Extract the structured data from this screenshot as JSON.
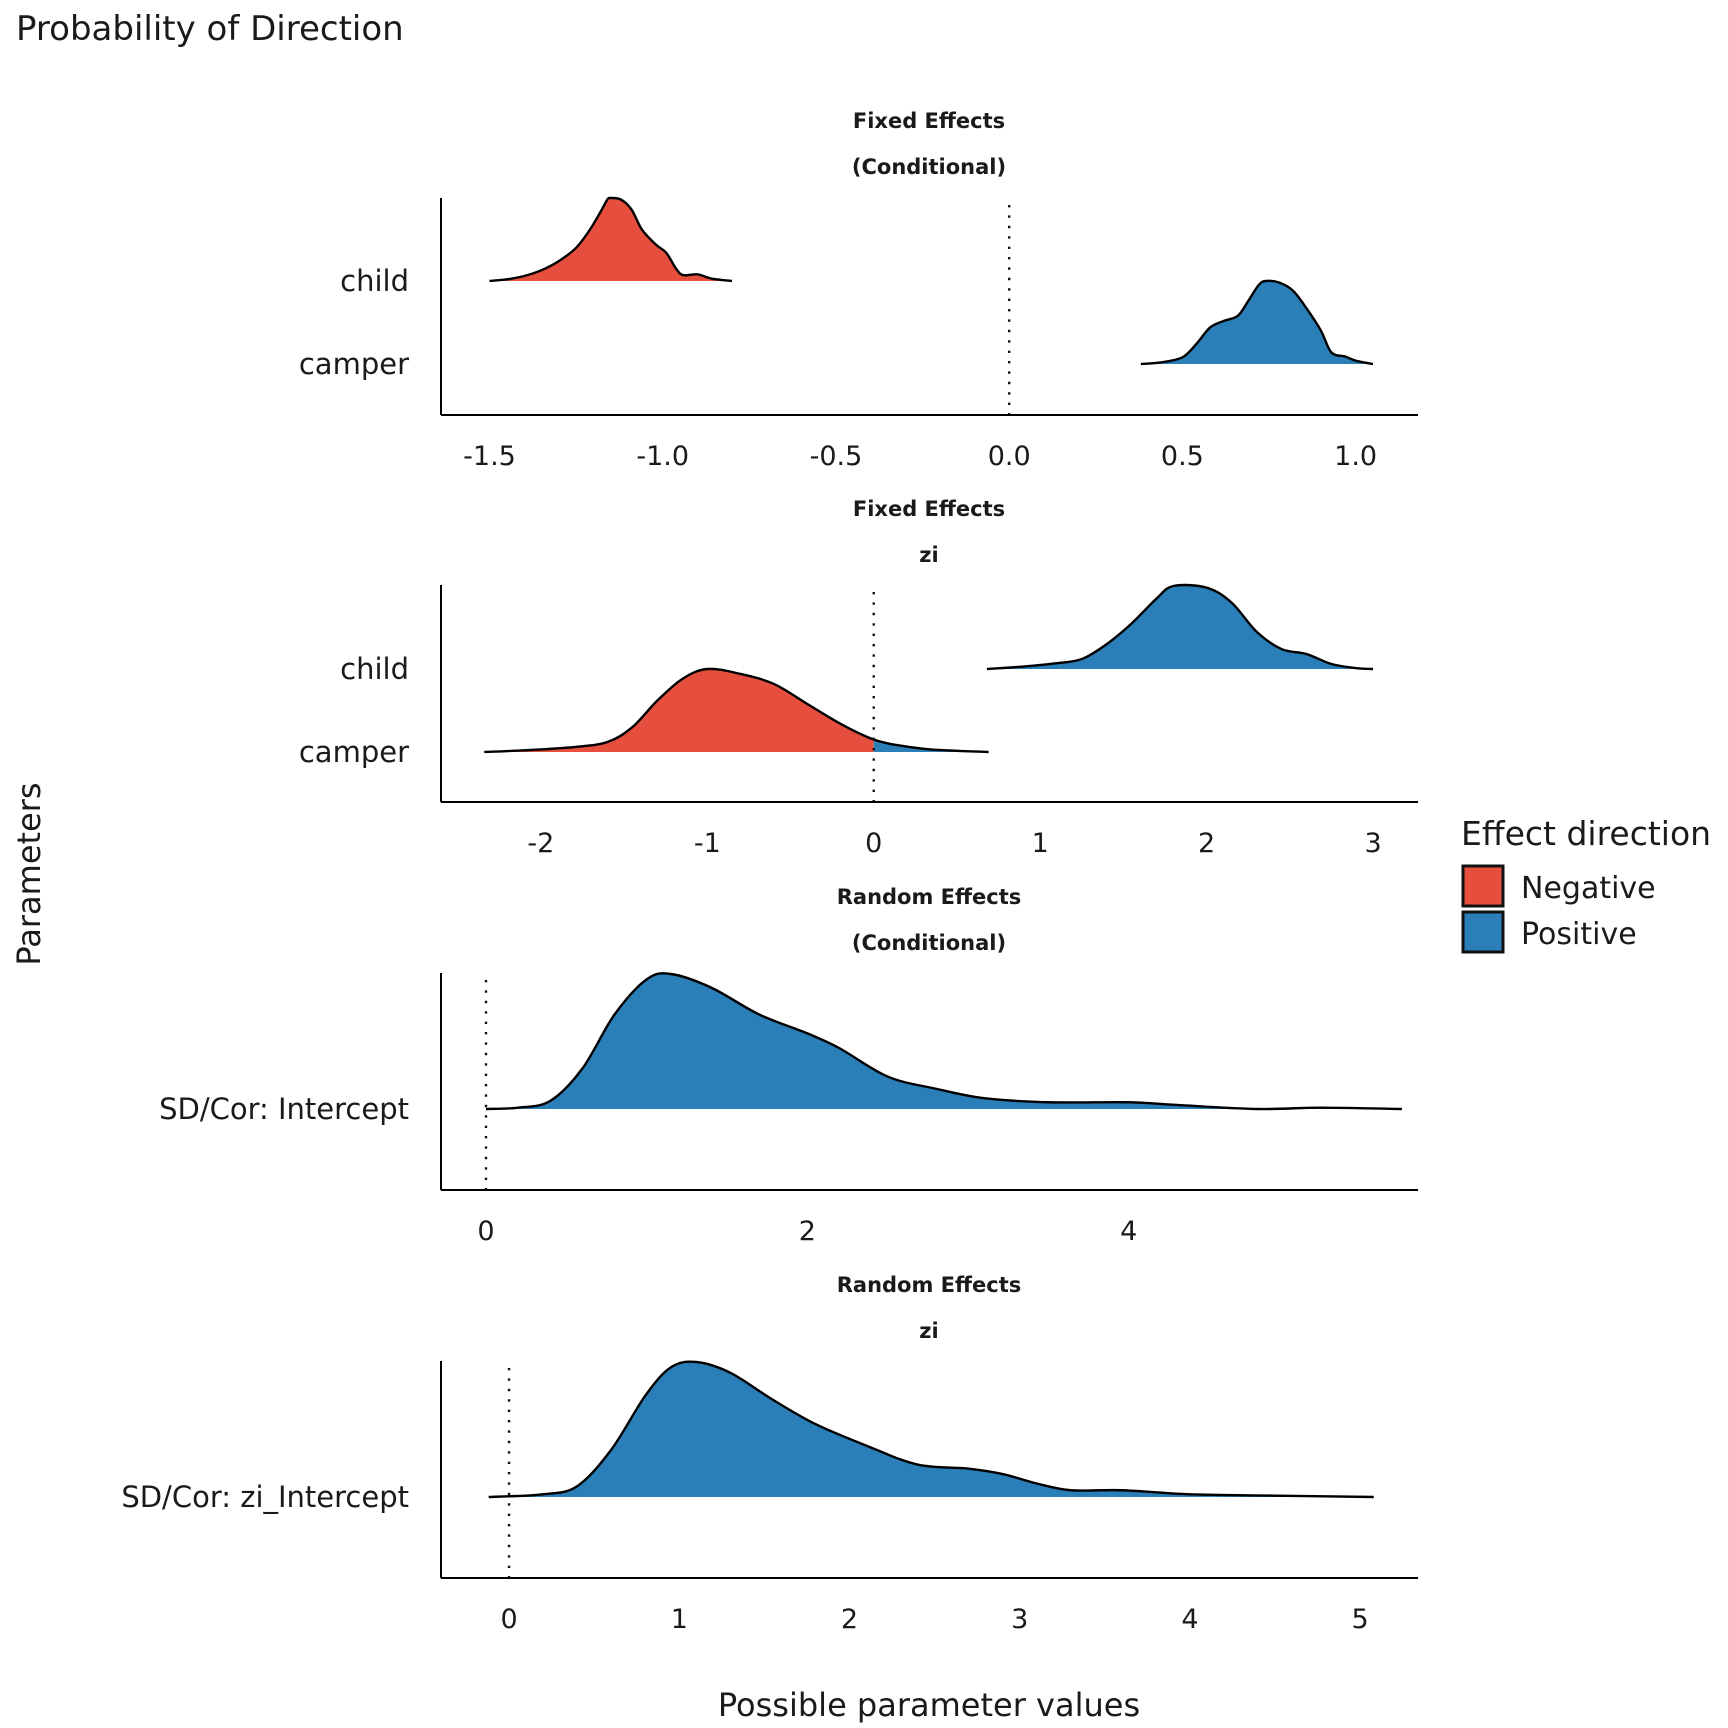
{
  "chart_data": {
    "type": "area",
    "subtype": "ridgeline-density",
    "title": "Probability of Direction",
    "xlabel": "Possible parameter values",
    "ylabel": "Parameters",
    "legend": {
      "title": "Effect direction",
      "placement": "right",
      "entries": [
        {
          "label": "Negative",
          "color": "#E64E3D"
        },
        {
          "label": "Positive",
          "color": "#2B7FB8"
        }
      ]
    },
    "zero_line": {
      "x": 0,
      "style": "dotted"
    },
    "panels": [
      {
        "strip": [
          "Fixed Effects",
          "(Conditional)"
        ],
        "xlim": [
          -1.64,
          1.18
        ],
        "ticks": [
          -1.5,
          -1.0,
          -0.5,
          0.0,
          0.5,
          1.0
        ],
        "tick_labels": [
          "-1.5",
          "-1.0",
          "-0.5",
          "0.0",
          "0.5",
          "1.0"
        ],
        "rows": [
          "child",
          "camper"
        ],
        "densities": [
          {
            "row": "child",
            "direction": "Negative",
            "points": [
              [
                -1.5,
                0.0
              ],
              [
                -1.45,
                0.02
              ],
              [
                -1.4,
                0.06
              ],
              [
                -1.35,
                0.13
              ],
              [
                -1.3,
                0.24
              ],
              [
                -1.25,
                0.4
              ],
              [
                -1.21,
                0.62
              ],
              [
                -1.18,
                0.83
              ],
              [
                -1.16,
                0.98
              ],
              [
                -1.15,
                1.0
              ],
              [
                -1.12,
                0.98
              ],
              [
                -1.09,
                0.86
              ],
              [
                -1.06,
                0.62
              ],
              [
                -1.02,
                0.44
              ],
              [
                -0.99,
                0.34
              ],
              [
                -0.96,
                0.14
              ],
              [
                -0.94,
                0.07
              ],
              [
                -0.9,
                0.08
              ],
              [
                -0.86,
                0.03
              ],
              [
                -0.8,
                0.0
              ]
            ]
          },
          {
            "row": "camper",
            "direction": "Positive",
            "points": [
              [
                0.38,
                0.0
              ],
              [
                0.44,
                0.02
              ],
              [
                0.5,
                0.08
              ],
              [
                0.54,
                0.24
              ],
              [
                0.58,
                0.44
              ],
              [
                0.62,
                0.52
              ],
              [
                0.66,
                0.58
              ],
              [
                0.69,
                0.76
              ],
              [
                0.72,
                0.95
              ],
              [
                0.74,
                1.0
              ],
              [
                0.78,
                0.98
              ],
              [
                0.82,
                0.88
              ],
              [
                0.86,
                0.66
              ],
              [
                0.9,
                0.4
              ],
              [
                0.93,
                0.14
              ],
              [
                0.97,
                0.09
              ],
              [
                1.0,
                0.04
              ],
              [
                1.05,
                0.0
              ]
            ]
          }
        ]
      },
      {
        "strip": [
          "Fixed Effects",
          "zi"
        ],
        "xlim": [
          -2.6,
          3.27
        ],
        "ticks": [
          -2,
          -1,
          0,
          1,
          2,
          3
        ],
        "tick_labels": [
          "-2",
          "-1",
          "0",
          "1",
          "2",
          "3"
        ],
        "rows": [
          "child",
          "camper"
        ],
        "densities": [
          {
            "row": "child",
            "direction": "Positive",
            "points": [
              [
                0.68,
                0.0
              ],
              [
                0.9,
                0.03
              ],
              [
                1.1,
                0.07
              ],
              [
                1.25,
                0.12
              ],
              [
                1.4,
                0.3
              ],
              [
                1.55,
                0.55
              ],
              [
                1.7,
                0.85
              ],
              [
                1.8,
                1.0
              ],
              [
                2.0,
                0.98
              ],
              [
                2.15,
                0.8
              ],
              [
                2.3,
                0.45
              ],
              [
                2.45,
                0.24
              ],
              [
                2.6,
                0.18
              ],
              [
                2.75,
                0.06
              ],
              [
                2.9,
                0.01
              ],
              [
                3.0,
                0.0
              ]
            ]
          },
          {
            "row": "camper",
            "direction": "Negative/Positive split at 0",
            "points": [
              [
                -2.34,
                0.0
              ],
              [
                -2.1,
                0.02
              ],
              [
                -1.8,
                0.06
              ],
              [
                -1.6,
                0.12
              ],
              [
                -1.45,
                0.3
              ],
              [
                -1.3,
                0.62
              ],
              [
                -1.15,
                0.88
              ],
              [
                -1.0,
                1.0
              ],
              [
                -0.8,
                0.94
              ],
              [
                -0.6,
                0.82
              ],
              [
                -0.4,
                0.58
              ],
              [
                -0.2,
                0.34
              ],
              [
                0.0,
                0.15
              ],
              [
                0.15,
                0.08
              ],
              [
                0.35,
                0.03
              ],
              [
                0.69,
                0.0
              ]
            ]
          }
        ]
      },
      {
        "strip": [
          "Random Effects",
          "(Conditional)"
        ],
        "xlim": [
          -0.28,
          5.8
        ],
        "ticks": [
          0,
          2,
          4
        ],
        "tick_labels": [
          "0",
          "2",
          "4"
        ],
        "rows": [
          "SD/Cor:  Intercept"
        ],
        "densities": [
          {
            "row": "SD/Cor:  Intercept",
            "direction": "Positive",
            "points": [
              [
                0.0,
                0.0
              ],
              [
                0.2,
                0.01
              ],
              [
                0.4,
                0.06
              ],
              [
                0.6,
                0.3
              ],
              [
                0.8,
                0.7
              ],
              [
                1.0,
                0.96
              ],
              [
                1.15,
                1.0
              ],
              [
                1.4,
                0.9
              ],
              [
                1.7,
                0.7
              ],
              [
                2.0,
                0.56
              ],
              [
                2.2,
                0.45
              ],
              [
                2.5,
                0.24
              ],
              [
                2.8,
                0.15
              ],
              [
                3.1,
                0.08
              ],
              [
                3.5,
                0.05
              ],
              [
                4.0,
                0.05
              ],
              [
                4.3,
                0.03
              ],
              [
                4.8,
                0.0
              ],
              [
                5.2,
                0.01
              ],
              [
                5.7,
                0.0
              ]
            ]
          }
        ]
      },
      {
        "strip": [
          "Random Effects",
          "zi"
        ],
        "xlim": [
          -0.4,
          5.34
        ],
        "ticks": [
          0,
          1,
          2,
          3,
          4,
          5
        ],
        "tick_labels": [
          "0",
          "1",
          "2",
          "3",
          "4",
          "5"
        ],
        "rows": [
          "SD/Cor:  zi_Intercept"
        ],
        "densities": [
          {
            "row": "SD/Cor:  zi_Intercept",
            "direction": "Positive",
            "points": [
              [
                -0.12,
                0.0
              ],
              [
                0.2,
                0.02
              ],
              [
                0.4,
                0.08
              ],
              [
                0.6,
                0.35
              ],
              [
                0.8,
                0.75
              ],
              [
                0.95,
                0.96
              ],
              [
                1.1,
                1.0
              ],
              [
                1.3,
                0.92
              ],
              [
                1.55,
                0.72
              ],
              [
                1.8,
                0.54
              ],
              [
                2.1,
                0.38
              ],
              [
                2.4,
                0.24
              ],
              [
                2.7,
                0.21
              ],
              [
                2.9,
                0.17
              ],
              [
                3.1,
                0.1
              ],
              [
                3.3,
                0.05
              ],
              [
                3.6,
                0.05
              ],
              [
                4.0,
                0.02
              ],
              [
                4.5,
                0.01
              ],
              [
                5.08,
                0.0
              ]
            ]
          }
        ]
      }
    ]
  }
}
